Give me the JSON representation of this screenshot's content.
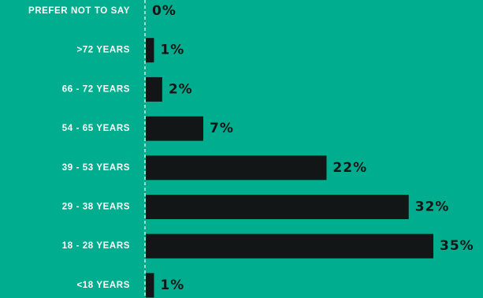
{
  "chart_data": {
    "type": "bar",
    "orientation": "horizontal",
    "categories": [
      "PREFER NOT TO SAY",
      ">72 YEARS",
      "66 - 72 YEARS",
      "54 - 65 YEARS",
      "39 - 53 YEARS",
      "29 - 38 YEARS",
      "18 - 28 YEARS",
      "<18 YEARS"
    ],
    "values": [
      0,
      1,
      2,
      7,
      22,
      32,
      35,
      1
    ],
    "value_labels": [
      "0%",
      "1%",
      "2%",
      "7%",
      "22%",
      "32%",
      "35%",
      "1%"
    ],
    "unit": "%",
    "xlim": [
      0,
      35
    ],
    "grid": false,
    "title": "",
    "xlabel": "",
    "ylabel": ""
  },
  "colors": {
    "background": "#00ad8e",
    "bar": "#131617",
    "text": "#ffffff",
    "value_text": "#131617",
    "axis": "#ffffff"
  }
}
